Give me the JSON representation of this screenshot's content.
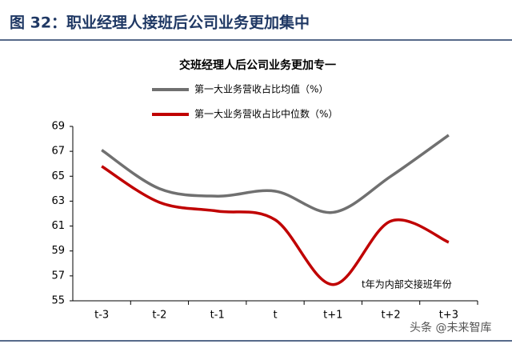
{
  "header": {
    "title": "图 32：职业经理人接班后公司业务更加集中"
  },
  "chart_data": {
    "type": "line",
    "title": "交班经理人后公司业务更加专一",
    "categories": [
      "t-3",
      "t-2",
      "t-1",
      "t",
      "t+1",
      "t+2",
      "t+3"
    ],
    "series": [
      {
        "name": "第一大业务营收占比均值（%）",
        "color": "#707070",
        "values": [
          67.1,
          64.0,
          63.4,
          63.8,
          62.1,
          65.0,
          68.3
        ]
      },
      {
        "name": "第一大业务营收占比中位数（%）",
        "color": "#c00000",
        "values": [
          65.8,
          62.9,
          62.2,
          61.5,
          56.3,
          61.4,
          59.7
        ]
      }
    ],
    "ylim": [
      55,
      69
    ],
    "yticks": [
      55,
      57,
      59,
      61,
      63,
      65,
      67,
      69
    ],
    "grid": false,
    "annotation": "t年为内部交接班年份"
  },
  "watermark": "头条 @未来智库"
}
